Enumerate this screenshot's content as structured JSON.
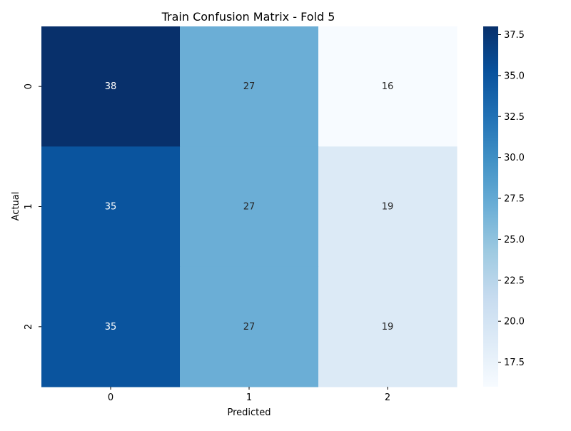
{
  "chart_data": {
    "type": "heatmap",
    "title": "Train Confusion Matrix - Fold 5",
    "xlabel": "Predicted",
    "ylabel": "Actual",
    "x_categories": [
      "0",
      "1",
      "2"
    ],
    "y_categories": [
      "0",
      "1",
      "2"
    ],
    "values": [
      [
        38,
        27,
        16
      ],
      [
        35,
        27,
        19
      ],
      [
        35,
        27,
        19
      ]
    ],
    "cell_labels": [
      [
        "38",
        "27",
        "16"
      ],
      [
        "35",
        "27",
        "19"
      ],
      [
        "35",
        "27",
        "19"
      ]
    ],
    "colormap": "Blues",
    "colorbar": {
      "range": [
        16,
        38
      ],
      "ticks": [
        17.5,
        20.0,
        22.5,
        25.0,
        27.5,
        30.0,
        32.5,
        35.0,
        37.5
      ],
      "tick_labels": [
        "17.5",
        "20.0",
        "22.5",
        "25.0",
        "27.5",
        "30.0",
        "32.5",
        "35.0",
        "37.5"
      ]
    },
    "legend": "colorbar-right",
    "grid": false
  }
}
